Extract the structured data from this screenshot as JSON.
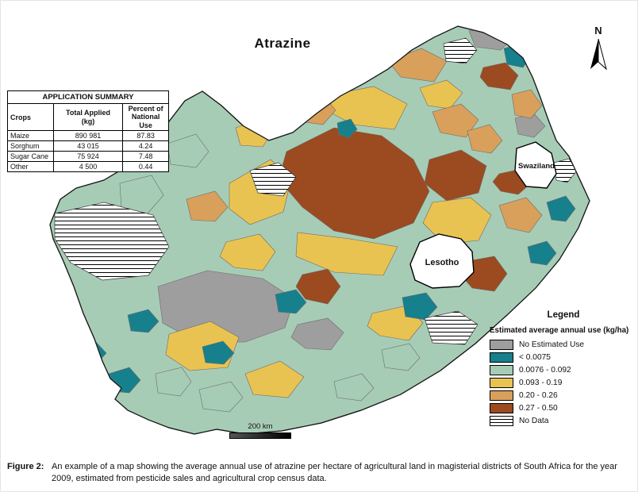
{
  "figure": {
    "map_title": "Atrazine",
    "north_label": "N",
    "scale_label": "200 km"
  },
  "summary_table": {
    "title": "APPLICATION SUMMARY",
    "col_crops": "Crops",
    "col_total_line1": "Total Applied",
    "col_total_line2": "(kg)",
    "col_percent_line1": "Percent of",
    "col_percent_line2": "National Use",
    "rows": [
      {
        "crop": "Maize",
        "total": "890 981",
        "percent": "87.83"
      },
      {
        "crop": "Sorghum",
        "total": "43 015",
        "percent": "4.24"
      },
      {
        "crop": "Sugar Cane",
        "total": "75 924",
        "percent": "7.48"
      },
      {
        "crop": "Other",
        "total": "4 500",
        "percent": "0.44"
      }
    ]
  },
  "legend": {
    "title": "Legend",
    "subtitle": "Estimated average annual use (kg/ha)",
    "items": [
      {
        "label": "No Estimated Use",
        "color": "#9e9e9e",
        "pattern": "solid"
      },
      {
        "label": "< 0.0075",
        "color": "#17808d",
        "pattern": "solid"
      },
      {
        "label": "0.0076 - 0.092",
        "color": "#a7ccb6",
        "pattern": "solid"
      },
      {
        "label": "0.093 - 0.19",
        "color": "#e9c351",
        "pattern": "solid"
      },
      {
        "label": "0.20 - 0.26",
        "color": "#d9a05b",
        "pattern": "solid"
      },
      {
        "label": "0.27 - 0.50",
        "color": "#9c4a20",
        "pattern": "solid"
      },
      {
        "label": "No Data",
        "color": "#ffffff",
        "pattern": "hatch"
      }
    ]
  },
  "map_labels": {
    "lesotho": "Lesotho",
    "swaziland": "Swaziland"
  },
  "caption": {
    "label": "Figure 2:",
    "text": "An example of a map showing the average annual use of atrazine per hectare of agricultural land in magisterial districts of South Africa for the year 2009, estimated from pesticide sales and agricultural crop census data."
  }
}
